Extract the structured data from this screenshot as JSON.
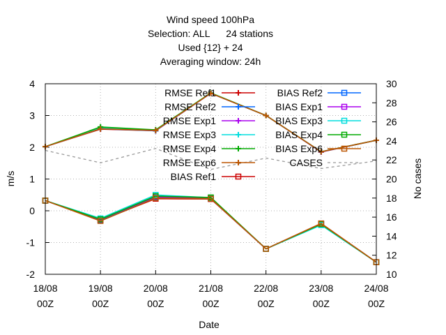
{
  "chart_data": {
    "type": "line",
    "title": [
      "Wind speed 100hPa",
      "Selection: ALL      24 stations",
      "Used {12} + 24",
      "Averaging window: 24h"
    ],
    "xlabel": "Date",
    "ylabel": "m/s",
    "y2label": "No cases",
    "categories": [
      "18/08\n00Z",
      "19/08\n00Z",
      "20/08\n00Z",
      "21/08\n00Z",
      "22/08\n00Z",
      "23/08\n00Z",
      "24/08\n00Z"
    ],
    "ylim": [
      -2,
      4
    ],
    "y2lim": [
      10,
      30
    ],
    "yticks": [
      -2,
      -1,
      0,
      1,
      2,
      3,
      4
    ],
    "y2ticks": [
      10,
      12,
      14,
      16,
      18,
      20,
      22,
      24,
      26,
      28,
      30
    ],
    "grid": true,
    "legend_position": "top-right",
    "series": [
      {
        "name": "RMSE Ref1",
        "color": "#cc0000",
        "marker": "plus",
        "axis": "y",
        "values": [
          2.02,
          2.57,
          2.52,
          3.7,
          3.0,
          1.85,
          2.22
        ]
      },
      {
        "name": "RMSE Ref2",
        "color": "#0066ff",
        "marker": "plus",
        "axis": "y",
        "values": [
          2.02,
          2.58,
          2.52,
          3.7,
          3.0,
          1.86,
          2.22
        ]
      },
      {
        "name": "RMSE Exp1",
        "color": "#aa00ee",
        "marker": "plus",
        "axis": "y",
        "values": [
          2.02,
          2.6,
          2.53,
          3.7,
          3.0,
          1.85,
          2.22
        ]
      },
      {
        "name": "RMSE Exp3",
        "color": "#00dddd",
        "marker": "plus",
        "axis": "y",
        "values": [
          2.02,
          2.62,
          2.54,
          3.71,
          3.0,
          1.86,
          2.22
        ]
      },
      {
        "name": "RMSE Exp4",
        "color": "#00aa00",
        "marker": "plus",
        "axis": "y",
        "values": [
          2.02,
          2.64,
          2.55,
          3.71,
          3.0,
          1.86,
          2.22
        ]
      },
      {
        "name": "RMSE Exp6",
        "color": "#bb5500",
        "marker": "plus",
        "axis": "y",
        "values": [
          2.02,
          2.58,
          2.53,
          3.7,
          3.0,
          1.86,
          2.22
        ]
      },
      {
        "name": "BIAS Ref1",
        "color": "#cc0000",
        "marker": "square",
        "axis": "y",
        "values": [
          0.32,
          -0.3,
          0.38,
          0.37,
          -1.2,
          -0.4,
          -1.62
        ]
      },
      {
        "name": "BIAS Ref2",
        "color": "#0066ff",
        "marker": "square",
        "axis": "y",
        "values": [
          0.32,
          -0.3,
          0.42,
          0.38,
          -1.2,
          -0.42,
          -1.62
        ]
      },
      {
        "name": "BIAS Exp1",
        "color": "#aa00ee",
        "marker": "square",
        "axis": "y",
        "values": [
          0.32,
          -0.28,
          0.44,
          0.39,
          -1.2,
          -0.42,
          -1.62
        ]
      },
      {
        "name": "BIAS Exp3",
        "color": "#00dddd",
        "marker": "square",
        "axis": "y",
        "values": [
          0.32,
          -0.24,
          0.5,
          0.41,
          -1.2,
          -0.45,
          -1.62
        ]
      },
      {
        "name": "BIAS Exp4",
        "color": "#00aa00",
        "marker": "square",
        "axis": "y",
        "values": [
          0.32,
          -0.27,
          0.46,
          0.42,
          -1.2,
          -0.42,
          -1.62
        ]
      },
      {
        "name": "BIAS Exp6",
        "color": "#bb5500",
        "marker": "square",
        "axis": "y",
        "values": [
          0.32,
          -0.32,
          0.4,
          0.38,
          -1.2,
          -0.4,
          -1.62
        ]
      },
      {
        "name": "CASES",
        "color": "#999999",
        "marker": "none",
        "dashed": true,
        "axis": "y2",
        "values": [
          23,
          21.7,
          23.2,
          21,
          22.2,
          21.1,
          21.9
        ]
      }
    ]
  }
}
